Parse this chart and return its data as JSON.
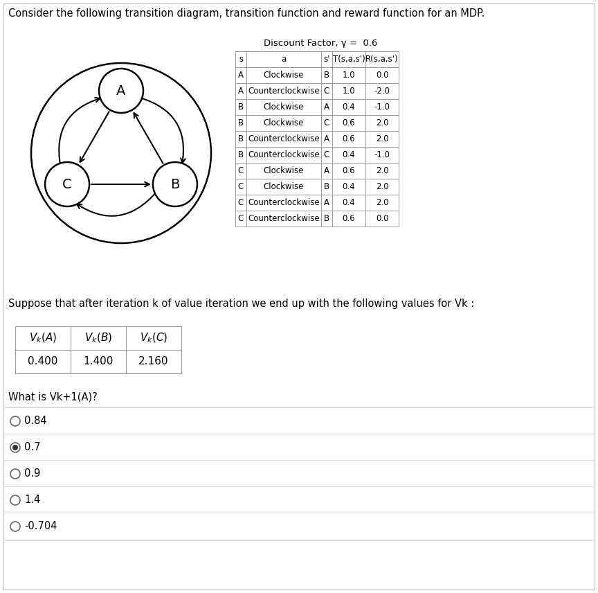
{
  "title": "Consider the following transition diagram, transition function and reward function for an MDP.",
  "discount_label": "Discount Factor, γ =  0.6",
  "table_rows": [
    [
      "A",
      "Clockwise",
      "B",
      "1.0",
      "0.0"
    ],
    [
      "A",
      "Counterclockwise",
      "C",
      "1.0",
      "-2.0"
    ],
    [
      "B",
      "Clockwise",
      "A",
      "0.4",
      "-1.0"
    ],
    [
      "B",
      "Clockwise",
      "C",
      "0.6",
      "2.0"
    ],
    [
      "B",
      "Counterclockwise",
      "A",
      "0.6",
      "2.0"
    ],
    [
      "B",
      "Counterclockwise",
      "C",
      "0.4",
      "-1.0"
    ],
    [
      "C",
      "Clockwise",
      "A",
      "0.6",
      "2.0"
    ],
    [
      "C",
      "Clockwise",
      "B",
      "0.4",
      "2.0"
    ],
    [
      "C",
      "Counterclockwise",
      "A",
      "0.4",
      "2.0"
    ],
    [
      "C",
      "Counterclockwise",
      "B",
      "0.6",
      "0.0"
    ]
  ],
  "vk_values": [
    "0.400",
    "1.400",
    "2.160"
  ],
  "suppose_text": "Suppose that after iteration k of value iteration we end up with the following values for Vk :",
  "question_text": "What is Vk+1(A)?",
  "options": [
    {
      "label": "0.84",
      "selected": false
    },
    {
      "label": "0.7",
      "selected": true
    },
    {
      "label": "0.9",
      "selected": false
    },
    {
      "label": "1.4",
      "selected": false
    },
    {
      "label": "-0.704",
      "selected": false
    }
  ],
  "bg_color": "#ffffff",
  "text_color": "#000000",
  "line_color": "#aaaaaa"
}
